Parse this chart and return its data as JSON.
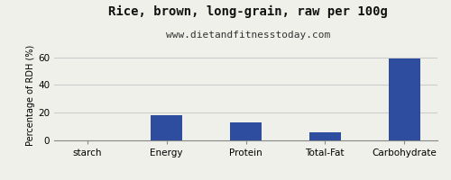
{
  "title": "Rice, brown, long-grain, raw per 100g",
  "subtitle": "www.dietandfitnesstoday.com",
  "categories": [
    "starch",
    "Energy",
    "Protein",
    "Total-Fat",
    "Carbohydrate"
  ],
  "values": [
    0,
    18,
    13,
    6,
    59
  ],
  "bar_color": "#2e4d9e",
  "ylabel": "Percentage of RDH (%)",
  "ylim": [
    0,
    65
  ],
  "yticks": [
    0,
    20,
    40,
    60
  ],
  "background_color": "#f0f0eb",
  "title_fontsize": 10,
  "subtitle_fontsize": 8,
  "ylabel_fontsize": 7,
  "tick_fontsize": 7.5,
  "bar_width": 0.4
}
